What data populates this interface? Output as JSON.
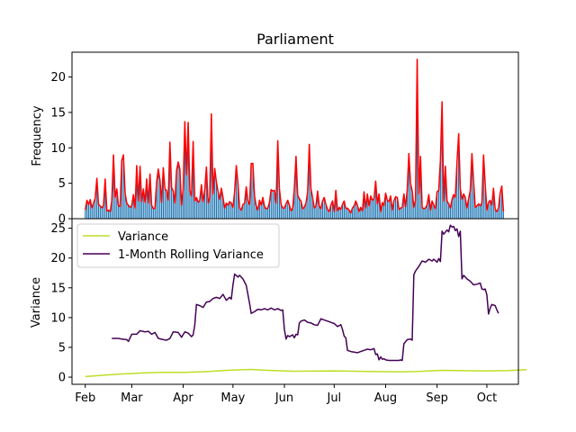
{
  "chart_data": [
    {
      "type": "bar+line",
      "title": "Parliament",
      "xlabel": "",
      "ylabel": "Frequency",
      "ylim": [
        0,
        23.5
      ],
      "yticks": [
        0,
        5,
        10,
        15,
        20
      ],
      "grid": false,
      "bar_color": "#1f77b4",
      "line_color": "#ff0000",
      "x_start": "2021-02-01",
      "values": [
        1.2,
        2.6,
        2.0,
        2.7,
        1.5,
        2.2,
        2.9,
        5.7,
        2.0,
        1.8,
        1.5,
        1.9,
        5.6,
        1.1,
        1.2,
        1.0,
        2.5,
        9.0,
        3.0,
        4.2,
        1.8,
        1.7,
        8.2,
        9.0,
        3.6,
        2.2,
        1.9,
        1.6,
        1.8,
        3.4,
        1.5,
        7.5,
        2.5,
        7.4,
        2.4,
        4.2,
        2.3,
        5.6,
        2.2,
        6.3,
        1.9,
        1.4,
        1.5,
        5.2,
        7.0,
        5.5,
        2.3,
        7.2,
        4.2,
        4.0,
        2.6,
        10.8,
        4.4,
        3.9,
        2.2,
        6.8,
        8.0,
        7.0,
        1.9,
        4.2,
        13.7,
        6.2,
        13.6,
        4.0,
        3.2,
        10.9,
        2.5,
        3.0,
        2.3,
        2.6,
        4.8,
        2.4,
        4.0,
        7.3,
        2.2,
        3.0,
        14.8,
        3.5,
        7.1,
        5.2,
        3.8,
        2.7,
        4.3,
        3.0,
        1.5,
        2.2,
        1.9,
        2.4,
        2.2,
        1.6,
        3.8,
        7.5,
        5.0,
        1.5,
        1.2,
        2.0,
        2.2,
        4.5,
        2.5,
        2.0,
        7.8,
        7.8,
        3.2,
        1.8,
        1.2,
        2.6,
        1.9,
        3.0,
        1.7,
        1.4,
        1.5,
        2.3,
        4.1,
        3.9,
        4.0,
        2.2,
        11.0,
        4.2,
        2.0,
        1.5,
        1.5,
        2.1,
        2.6,
        1.9,
        1.1,
        1.5,
        4.3,
        8.8,
        3.3,
        2.8,
        2.5,
        1.4,
        1.6,
        2.2,
        3.8,
        10.5,
        4.2,
        3.0,
        1.5,
        1.8,
        3.9,
        1.8,
        1.4,
        2.5,
        3.0,
        2.0,
        1.3,
        1.0,
        1.9,
        2.5,
        1.0,
        4.0,
        1.1,
        1.6,
        1.3,
        2.0,
        2.5,
        1.4,
        1.5,
        1.2,
        0.8,
        1.5,
        1.8,
        2.5,
        1.9,
        1.0,
        1.6,
        1.1,
        3.8,
        1.5,
        3.5,
        1.8,
        3.2,
        2.6,
        2.8,
        5.3,
        2.1,
        3.5,
        1.0,
        2.3,
        1.8,
        3.6,
        2.6,
        2.4,
        3.2,
        1.2,
        2.5,
        3.1,
        3.0,
        1.3,
        1.5,
        1.6,
        3.5,
        1.7,
        4.0,
        9.2,
        5.0,
        3.9,
        1.6,
        2.6,
        22.5,
        3.5,
        8.8,
        1.6,
        1.4,
        1.5,
        2.0,
        3.4,
        1.2,
        2.5,
        1.9,
        1.4,
        3.8,
        4.0,
        8.2,
        16.5,
        2.5,
        7.4,
        2.5,
        2.1,
        1.5,
        2.7,
        3.4,
        3.0,
        8.0,
        12.0,
        4.2,
        2.7,
        3.5,
        3.0,
        1.5,
        2.8,
        4.0,
        9.2,
        5.3,
        1.6,
        1.8,
        2.1,
        1.8,
        2.2,
        9.0,
        4.8,
        1.2,
        2.3,
        2.6,
        1.9,
        4.3,
        1.3,
        1.0,
        1.5,
        3.6,
        4.6,
        1.0
      ]
    },
    {
      "type": "line",
      "xlabel": "",
      "ylabel": "Variance",
      "ylim": [
        -1.2,
        26.6
      ],
      "yticks": [
        0,
        5,
        10,
        15,
        20,
        25
      ],
      "grid": false,
      "x_ticks": [
        "Feb",
        "Mar",
        "Apr",
        "May",
        "Jun",
        "Jul",
        "Aug",
        "Sep",
        "Oct"
      ],
      "x_tick_dates": [
        "2021-02-01",
        "2021-03-01",
        "2021-04-01",
        "2021-05-01",
        "2021-06-01",
        "2021-07-01",
        "2021-08-01",
        "2021-09-01",
        "2021-10-01"
      ],
      "x_range": [
        "2021-01-24",
        "2021-10-20"
      ],
      "legend": "upper-left",
      "series": [
        {
          "name": "Variance",
          "color": "#bcdf27",
          "x_start": "2021-02-01",
          "points": [
            [
              0,
              0.1
            ],
            [
              20,
              0.5
            ],
            [
              35,
              0.7
            ],
            [
              45,
              0.8
            ],
            [
              60,
              0.8
            ],
            [
              75,
              0.95
            ],
            [
              85,
              1.15
            ],
            [
              100,
              1.3
            ],
            [
              110,
              1.15
            ],
            [
              125,
              1.0
            ],
            [
              150,
              1.05
            ],
            [
              170,
              0.95
            ],
            [
              190,
              0.9
            ],
            [
              200,
              0.95
            ],
            [
              215,
              1.15
            ],
            [
              225,
              1.1
            ],
            [
              240,
              1.05
            ],
            [
              255,
              1.1
            ],
            [
              266,
              1.25
            ]
          ]
        },
        {
          "name": "1-Month Rolling Variance",
          "color": "#440154",
          "x_start": "2021-02-01",
          "points": [
            [
              16,
              6.5
            ],
            [
              20,
              6.5
            ],
            [
              22,
              6.4
            ],
            [
              25,
              6.3
            ],
            [
              26,
              6.0
            ],
            [
              28,
              7.2
            ],
            [
              31,
              7.2
            ],
            [
              33,
              7.8
            ],
            [
              36,
              7.6
            ],
            [
              38,
              7.7
            ],
            [
              40,
              7.2
            ],
            [
              42,
              7.5
            ],
            [
              44,
              6.5
            ],
            [
              47,
              6.3
            ],
            [
              49,
              6.2
            ],
            [
              51,
              6.5
            ],
            [
              53,
              7.6
            ],
            [
              56,
              7.5
            ],
            [
              58,
              6.7
            ],
            [
              60,
              7.6
            ],
            [
              62,
              7.4
            ],
            [
              64,
              6.8
            ],
            [
              65,
              7.1
            ],
            [
              66,
              8.8
            ],
            [
              67,
              12.2
            ],
            [
              69,
              12.0
            ],
            [
              71,
              11.7
            ],
            [
              73,
              12.6
            ],
            [
              75,
              12.7
            ],
            [
              77,
              13.2
            ],
            [
              79,
              13.4
            ],
            [
              81,
              13.2
            ],
            [
              83,
              13.9
            ],
            [
              85,
              12.9
            ],
            [
              87,
              13.4
            ],
            [
              88,
              13.1
            ],
            [
              89,
              15.5
            ],
            [
              90,
              17.3
            ],
            [
              92,
              16.8
            ],
            [
              93,
              17.1
            ],
            [
              95,
              16.5
            ],
            [
              97,
              15.4
            ],
            [
              99,
              12.4
            ],
            [
              100,
              10.7
            ],
            [
              102,
              11.0
            ],
            [
              104,
              11.4
            ],
            [
              106,
              11.3
            ],
            [
              108,
              11.5
            ],
            [
              110,
              11.3
            ],
            [
              112,
              11.6
            ],
            [
              114,
              11.3
            ],
            [
              116,
              11.5
            ],
            [
              118,
              11.2
            ],
            [
              119,
              11.3
            ],
            [
              120,
              8.0
            ],
            [
              121,
              6.4
            ],
            [
              122,
              7.0
            ],
            [
              123,
              6.8
            ],
            [
              125,
              7.1
            ],
            [
              126,
              6.6
            ],
            [
              127,
              7.2
            ],
            [
              128,
              7.1
            ],
            [
              129,
              9.1
            ],
            [
              130,
              9.4
            ],
            [
              132,
              9.6
            ],
            [
              134,
              9.2
            ],
            [
              136,
              9.1
            ],
            [
              138,
              8.8
            ],
            [
              140,
              8.7
            ],
            [
              142,
              9.8
            ],
            [
              144,
              9.6
            ],
            [
              146,
              9.4
            ],
            [
              148,
              9.2
            ],
            [
              150,
              9.0
            ],
            [
              152,
              8.5
            ],
            [
              154,
              8.8
            ],
            [
              155,
              8.0
            ],
            [
              156,
              6.9
            ],
            [
              157,
              6.6
            ],
            [
              158,
              4.5
            ],
            [
              160,
              4.3
            ],
            [
              162,
              4.2
            ],
            [
              164,
              4.1
            ],
            [
              166,
              4.3
            ],
            [
              168,
              4.5
            ],
            [
              170,
              4.7
            ],
            [
              172,
              4.6
            ],
            [
              174,
              4.8
            ],
            [
              175,
              3.8
            ],
            [
              176,
              3.9
            ],
            [
              177,
              2.9
            ],
            [
              178,
              3.4
            ],
            [
              179,
              3.0
            ],
            [
              180,
              3.1
            ],
            [
              181,
              2.9
            ],
            [
              183,
              2.8
            ],
            [
              185,
              2.8
            ],
            [
              187,
              2.8
            ],
            [
              189,
              2.8
            ],
            [
              190,
              2.9
            ],
            [
              191,
              2.8
            ],
            [
              192,
              5.6
            ],
            [
              194,
              6.3
            ],
            [
              196,
              6.4
            ],
            [
              197,
              6.2
            ],
            [
              198,
              17.2
            ],
            [
              199,
              17.8
            ],
            [
              201,
              18.6
            ],
            [
              203,
              19.5
            ],
            [
              205,
              19.3
            ],
            [
              207,
              19.8
            ],
            [
              209,
              19.5
            ],
            [
              210,
              19.8
            ],
            [
              212,
              19.3
            ],
            [
              213,
              19.9
            ],
            [
              214,
              19.4
            ],
            [
              215,
              24.5
            ],
            [
              216,
              24.0
            ],
            [
              218,
              24.7
            ],
            [
              219,
              24.4
            ],
            [
              220,
              25.5
            ],
            [
              221,
              25.2
            ],
            [
              222,
              25.3
            ],
            [
              223,
              24.6
            ],
            [
              224,
              24.9
            ],
            [
              225,
              23.6
            ],
            [
              226,
              24.5
            ],
            [
              227,
              16.5
            ],
            [
              228,
              17.1
            ],
            [
              230,
              16.5
            ],
            [
              232,
              16.1
            ],
            [
              234,
              15.5
            ],
            [
              236,
              15.6
            ],
            [
              238,
              15.8
            ],
            [
              239,
              14.8
            ],
            [
              240,
              14.7
            ],
            [
              241,
              14.8
            ],
            [
              242,
              13.8
            ],
            [
              243,
              10.6
            ],
            [
              244,
              11.6
            ],
            [
              245,
              12.2
            ],
            [
              247,
              12.0
            ],
            [
              248,
              11.3
            ],
            [
              249,
              10.7
            ]
          ]
        }
      ]
    }
  ]
}
